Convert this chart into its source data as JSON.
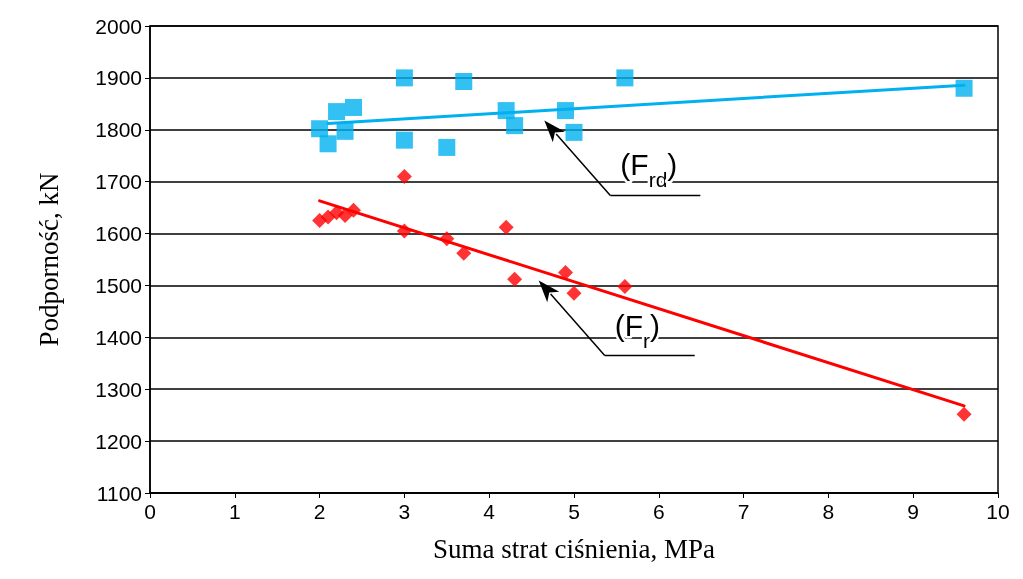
{
  "chart_data": {
    "type": "scatter",
    "xlabel": "Suma strat ciśnienia, MPa",
    "ylabel": "Podporność, kN",
    "xlim": [
      0,
      10
    ],
    "xticks": [
      0,
      1,
      2,
      3,
      4,
      5,
      6,
      7,
      8,
      9,
      10
    ],
    "ylim": [
      1100,
      2000
    ],
    "yticks": [
      1100,
      1200,
      1300,
      1400,
      1500,
      1600,
      1700,
      1800,
      1900,
      2000
    ],
    "grid": "y",
    "series": [
      {
        "marker": "square",
        "color": "#00b0f0",
        "x": [
          2.0,
          2.1,
          2.2,
          2.3,
          2.4,
          3.0,
          3.0,
          3.5,
          3.7,
          4.2,
          4.3,
          4.9,
          5.0,
          5.6,
          9.6
        ],
        "values": [
          1802,
          1773,
          1835,
          1797,
          1843,
          1900,
          1780,
          1766,
          1893,
          1837,
          1808,
          1837,
          1795,
          1900,
          1880
        ]
      },
      {
        "marker": "diamond",
        "color": "#ff0000",
        "x": [
          2.0,
          2.1,
          2.2,
          2.3,
          2.4,
          3.0,
          3.0,
          3.5,
          3.7,
          4.2,
          4.3,
          4.9,
          5.0,
          5.6,
          9.6
        ],
        "values": [
          1625,
          1632,
          1640,
          1635,
          1645,
          1710,
          1605,
          1590,
          1562,
          1612,
          1512,
          1525,
          1485,
          1498,
          1252
        ]
      },
      {
        "type": "line",
        "marker": "none",
        "color": "#00b0f0",
        "x": [
          2.1,
          9.6
        ],
        "values": [
          1812,
          1886
        ]
      },
      {
        "type": "line",
        "marker": "none",
        "color": "#ff0000",
        "x": [
          2.0,
          9.6
        ],
        "values": [
          1663,
          1268
        ]
      }
    ],
    "annotations": [
      "(F$_{rd}$)",
      "(F$_{r}$)"
    ]
  }
}
